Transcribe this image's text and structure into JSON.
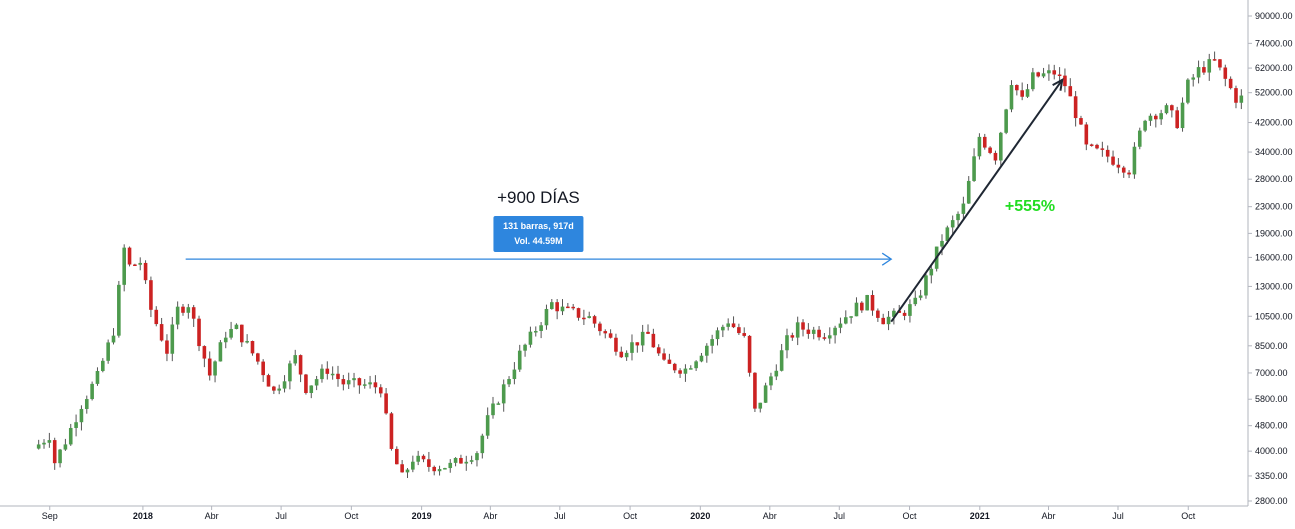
{
  "chart_data": {
    "type": "candlestick",
    "title": "",
    "xlabel": "",
    "ylabel": "",
    "y_scale": "log",
    "ylim": [
      2700,
      100000
    ],
    "xlim": [
      "2017-08-14",
      "2021-12-13"
    ],
    "grid": false,
    "colors": {
      "up": "#4d9a4d",
      "down": "#cc2222",
      "wick": "#555555",
      "arrow_blue": "#2e86de",
      "info_box": "#2e86de",
      "percent": "#22dd22"
    },
    "y_ticks": [
      "90000.00",
      "74000.00",
      "62000.00",
      "52000.00",
      "42000.00",
      "34000.00",
      "28000.00",
      "23000.00",
      "19000.00",
      "16000.00",
      "13000.00",
      "10500.00",
      "8500.00",
      "7000.00",
      "5800.00",
      "4800.00",
      "4000.00",
      "3350.00",
      "2800.00"
    ],
    "x_ticks": [
      {
        "date": "2017-09-01",
        "label": "Sep",
        "bold": false
      },
      {
        "date": "2018-01-01",
        "label": "2018",
        "bold": true
      },
      {
        "date": "2018-04-01",
        "label": "Abr",
        "bold": false
      },
      {
        "date": "2018-07-01",
        "label": "Jul",
        "bold": false
      },
      {
        "date": "2018-10-01",
        "label": "Oct",
        "bold": false
      },
      {
        "date": "2019-01-01",
        "label": "2019",
        "bold": true
      },
      {
        "date": "2019-04-01",
        "label": "Abr",
        "bold": false
      },
      {
        "date": "2019-07-01",
        "label": "Jul",
        "bold": false
      },
      {
        "date": "2019-10-01",
        "label": "Oct",
        "bold": false
      },
      {
        "date": "2020-01-01",
        "label": "2020",
        "bold": true
      },
      {
        "date": "2020-04-01",
        "label": "Abr",
        "bold": false
      },
      {
        "date": "2020-07-01",
        "label": "Jul",
        "bold": false
      },
      {
        "date": "2020-10-01",
        "label": "Oct",
        "bold": false
      },
      {
        "date": "2021-01-01",
        "label": "2021",
        "bold": true
      },
      {
        "date": "2021-04-01",
        "label": "Abr",
        "bold": false
      },
      {
        "date": "2021-07-01",
        "label": "Jul",
        "bold": false
      },
      {
        "date": "2021-10-01",
        "label": "Oct",
        "bold": false
      }
    ],
    "anchors": [
      [
        "2017-08-21",
        4200
      ],
      [
        "2017-09-04",
        4500
      ],
      [
        "2017-09-11",
        3700
      ],
      [
        "2017-09-25",
        4300
      ],
      [
        "2017-10-16",
        5600
      ],
      [
        "2017-11-06",
        6800
      ],
      [
        "2017-11-27",
        9500
      ],
      [
        "2017-12-11",
        17000
      ],
      [
        "2017-12-18",
        15000
      ],
      [
        "2018-01-01",
        15500
      ],
      [
        "2018-01-15",
        11000
      ],
      [
        "2018-02-05",
        8200
      ],
      [
        "2018-02-19",
        11000
      ],
      [
        "2018-03-05",
        11500
      ],
      [
        "2018-03-26",
        7800
      ],
      [
        "2018-04-02",
        6900
      ],
      [
        "2018-04-23",
        9300
      ],
      [
        "2018-05-07",
        9600
      ],
      [
        "2018-06-04",
        7600
      ],
      [
        "2018-06-25",
        6100
      ],
      [
        "2018-07-23",
        7800
      ],
      [
        "2018-08-06",
        6300
      ],
      [
        "2018-09-03",
        7200
      ],
      [
        "2018-09-24",
        6500
      ],
      [
        "2018-10-29",
        6400
      ],
      [
        "2018-11-12",
        6300
      ],
      [
        "2018-11-26",
        4000
      ],
      [
        "2018-12-10",
        3300
      ],
      [
        "2018-12-24",
        3800
      ],
      [
        "2019-01-14",
        3600
      ],
      [
        "2019-02-11",
        3600
      ],
      [
        "2019-03-18",
        4000
      ],
      [
        "2019-04-01",
        5000
      ],
      [
        "2019-05-13",
        8000
      ],
      [
        "2019-06-24",
        11500
      ],
      [
        "2019-07-08",
        11000
      ],
      [
        "2019-08-12",
        10400
      ],
      [
        "2019-09-23",
        8200
      ],
      [
        "2019-10-28",
        9200
      ],
      [
        "2019-11-18",
        7400
      ],
      [
        "2019-12-16",
        7200
      ],
      [
        "2020-02-10",
        10200
      ],
      [
        "2020-03-02",
        8900
      ],
      [
        "2020-03-16",
        5300
      ],
      [
        "2020-04-27",
        8800
      ],
      [
        "2020-05-11",
        9700
      ],
      [
        "2020-06-15",
        9300
      ],
      [
        "2020-07-27",
        11200
      ],
      [
        "2020-08-10",
        11700
      ],
      [
        "2020-08-31",
        10300
      ],
      [
        "2020-09-21",
        10600
      ],
      [
        "2020-10-12",
        11500
      ],
      [
        "2020-10-26",
        13700
      ],
      [
        "2020-11-16",
        18300
      ],
      [
        "2020-12-14",
        23000
      ],
      [
        "2021-01-04",
        38000
      ],
      [
        "2021-01-25",
        33000
      ],
      [
        "2021-02-15",
        57000
      ],
      [
        "2021-03-01",
        49000
      ],
      [
        "2021-03-15",
        58000
      ],
      [
        "2021-04-12",
        60000
      ],
      [
        "2021-04-26",
        55000
      ],
      [
        "2021-05-10",
        45000
      ],
      [
        "2021-05-24",
        35000
      ],
      [
        "2021-06-21",
        33000
      ],
      [
        "2021-07-19",
        30000
      ],
      [
        "2021-08-09",
        44000
      ],
      [
        "2021-09-06",
        46000
      ],
      [
        "2021-09-20",
        42000
      ],
      [
        "2021-10-04",
        55000
      ],
      [
        "2021-10-18",
        61000
      ],
      [
        "2021-11-08",
        65000
      ],
      [
        "2021-11-22",
        57000
      ],
      [
        "2021-12-06",
        50000
      ]
    ],
    "annotations": {
      "days_label": "+900 DÍAS",
      "box_line1": "131 barras, 917d",
      "box_line2": "Vol. 44.59M",
      "percent_label": "+555%",
      "range_arrow": {
        "from_date": "2018-02-26",
        "to_date": "2020-09-07",
        "price": 15800
      },
      "trend_arrow": {
        "from": [
          "2020-09-07",
          10100
        ],
        "to": [
          "2021-04-19",
          57000
        ]
      }
    }
  }
}
